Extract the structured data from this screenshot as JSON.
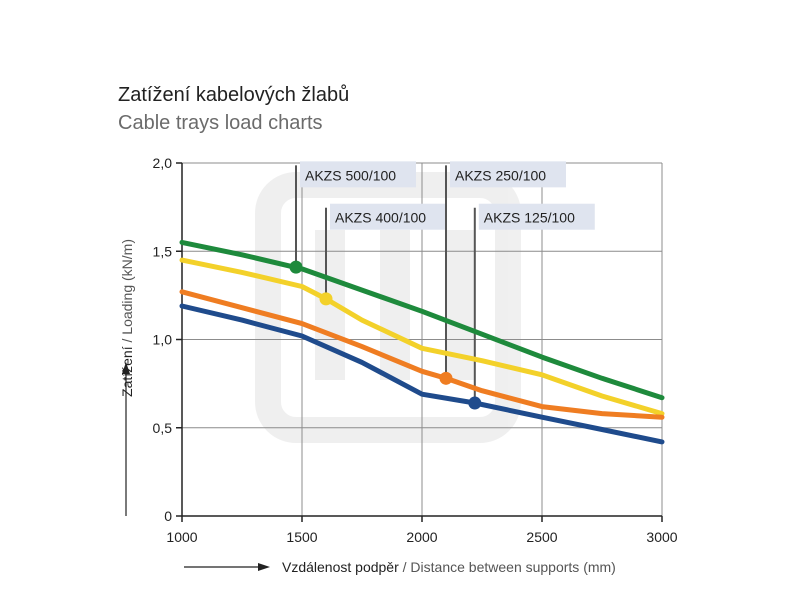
{
  "header": {
    "title": "Zatížení kabelových žlabů",
    "subtitle": "Cable trays load charts"
  },
  "chart_data": {
    "type": "line",
    "title": "Zatížení kabelových žlabů",
    "subtitle": "Cable trays load charts",
    "ylabel": "Zatížení / Loading (kN/m)",
    "ylabel_bold": "Zatížení",
    "ylabel_rest": " / Loading (kN/m)",
    "xlabel": "Vzdálenost podpěr / Distance between supports (mm)",
    "xlabel_main": "Vzdálenost podpěr",
    "xlabel_rest": " / Distance between supports (mm)",
    "xlim": [
      1000,
      3000
    ],
    "ylim": [
      0,
      2
    ],
    "x_ticks": [
      1000,
      1500,
      2000,
      2500,
      3000
    ],
    "x_tick_labels": [
      "1000",
      "1500",
      "2000",
      "2500",
      "3000"
    ],
    "y_ticks": [
      0,
      0.5,
      1,
      1.5,
      2
    ],
    "y_tick_labels": [
      "0",
      "0,5",
      "1,0",
      "1,5",
      "2,0"
    ],
    "grid": true,
    "series": [
      {
        "name": "AKZS 500/100",
        "color": "#1e8a3c",
        "x": [
          1000,
          1250,
          1500,
          1750,
          2000,
          2250,
          2500,
          2750,
          3000
        ],
        "y": [
          1.55,
          1.48,
          1.4,
          1.28,
          1.16,
          1.03,
          0.9,
          0.78,
          0.67
        ],
        "marker": {
          "x": 1475,
          "y": 1.41
        },
        "label_anchor_y": 1.93
      },
      {
        "name": "AKZS 400/100",
        "color": "#f3d12a",
        "x": [
          1000,
          1250,
          1500,
          1600,
          1750,
          2000,
          2250,
          2500,
          2750,
          3000
        ],
        "y": [
          1.45,
          1.38,
          1.3,
          1.23,
          1.11,
          0.95,
          0.88,
          0.8,
          0.68,
          0.58
        ],
        "marker": {
          "x": 1600,
          "y": 1.23
        },
        "label_anchor_y": 1.69
      },
      {
        "name": "AKZS 250/100",
        "color": "#ef7d22",
        "x": [
          1000,
          1250,
          1500,
          1750,
          2000,
          2100,
          2250,
          2500,
          2750,
          3000
        ],
        "y": [
          1.27,
          1.18,
          1.09,
          0.96,
          0.82,
          0.78,
          0.71,
          0.62,
          0.58,
          0.56
        ],
        "marker": {
          "x": 2100,
          "y": 0.78
        },
        "label_anchor_y": 1.93
      },
      {
        "name": "AKZS 125/100",
        "color": "#1f4b8c",
        "x": [
          1000,
          1250,
          1500,
          1750,
          2000,
          2220,
          2500,
          2750,
          3000
        ],
        "y": [
          1.19,
          1.11,
          1.02,
          0.87,
          0.69,
          0.64,
          0.56,
          0.49,
          0.42
        ],
        "marker": {
          "x": 2220,
          "y": 0.64
        },
        "label_anchor_y": 1.69
      }
    ]
  }
}
